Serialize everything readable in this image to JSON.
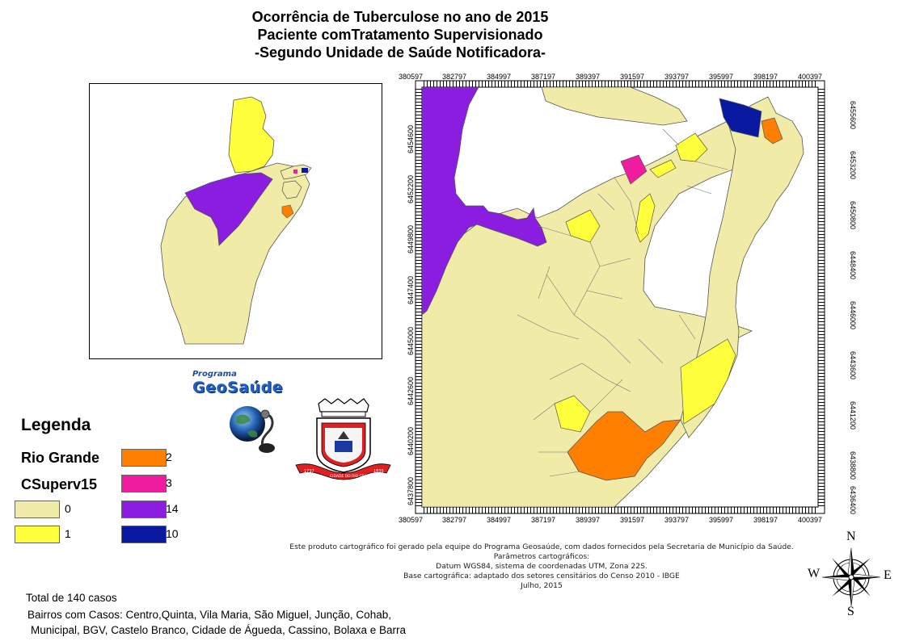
{
  "title": {
    "line1": "Ocorrência de Tuberculose no ano de 2015",
    "line2": "Paciente comTratamento Supervisionado",
    "line3": "-Segundo Unidade de Saúde Notificadora-"
  },
  "grid": {
    "top_x": [
      "380597",
      "382797",
      "384997",
      "387197",
      "389397",
      "391597",
      "393797",
      "395997",
      "398197",
      "400397"
    ],
    "bottom_x": [
      "380597",
      "382797",
      "384997",
      "387197",
      "389397",
      "391597",
      "393797",
      "395997",
      "398197",
      "400397"
    ],
    "left_y": [
      "6454600",
      "6452200",
      "6449800",
      "6447400",
      "6445000",
      "6442600",
      "6440200",
      "6437800"
    ],
    "right_y": [
      "6455600",
      "6453200",
      "6450800",
      "6448400",
      "6446000",
      "6443600",
      "6441200",
      "6438800",
      "6436400"
    ]
  },
  "logo": {
    "programa": "Programa",
    "geosaude": "GeoSaúde",
    "crest_ribbon": "CIDADE DO RIO GRANDE",
    "crest_year_left": "1737",
    "crest_year_right": "1835"
  },
  "legend": {
    "title": "Legenda",
    "layer1": "Rio Grande",
    "layer2": "CSuperv15",
    "items": [
      {
        "label": "0",
        "color": "#f0eca8"
      },
      {
        "label": "1",
        "color": "#ffff3c"
      },
      {
        "label": "2",
        "color": "#ff8000"
      },
      {
        "label": "3",
        "color": "#f01ca0"
      },
      {
        "label": "14",
        "color": "#8a1de0"
      },
      {
        "label": "10",
        "color": "#0a1aa0"
      }
    ]
  },
  "credits": {
    "line1": "Este produto cartográfico foi gerado pela equipe do Programa Geosaúde, com dados fornecidos pela Secretaria de Município da Saúde.",
    "line2": "Parâmetros cartográficos:",
    "line3": "Datum WGS84, sistema de coordenadas UTM, Zona 22S.",
    "line4": "Base cartográfica: adaptado dos setores censitários do Censo 2010 - IBGE",
    "line5": "Julho, 2015"
  },
  "notes": {
    "total": "Total de 140 casos",
    "bairros1": "Bairros com Casos: Centro,Quinta, Vila Maria, São Miguel, Junção, Cohab,",
    "bairros2": "Municipal, BGV, Castelo Branco, Cidade de Águeda, Cassino, Bolaxa e Barra"
  },
  "compass": {
    "n": "N",
    "s": "S",
    "e": "E",
    "w": "W"
  }
}
